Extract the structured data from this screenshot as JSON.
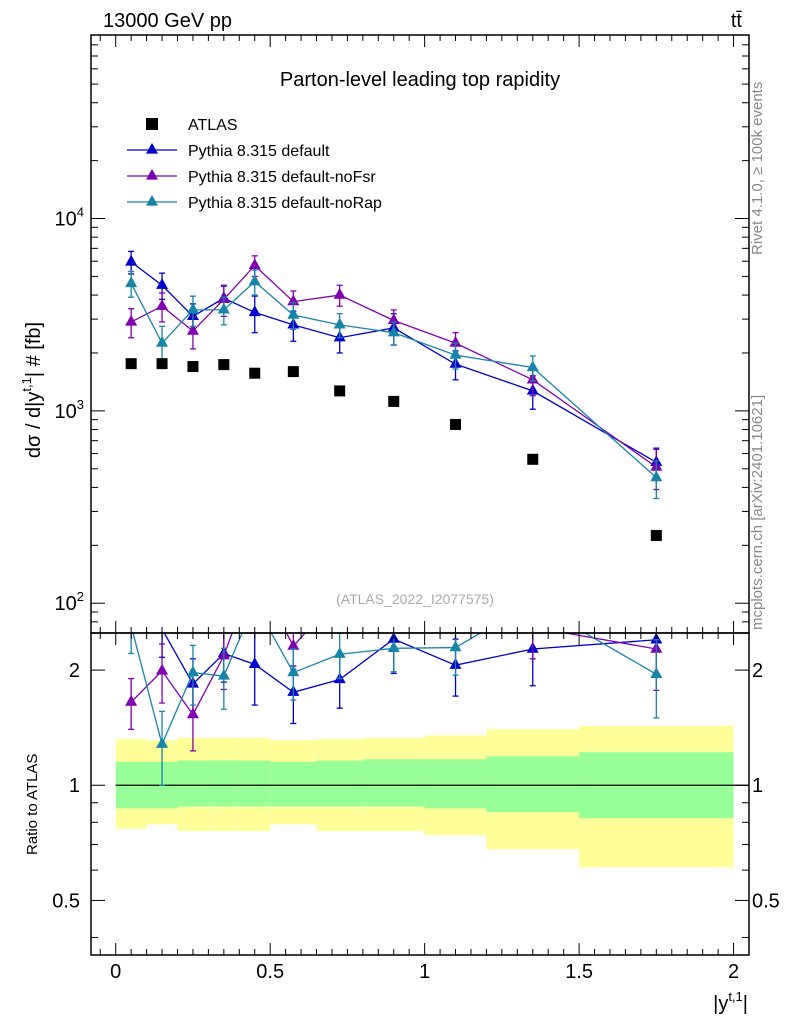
{
  "header": {
    "left": "13000 GeV pp",
    "right": "tt̄"
  },
  "side": {
    "rivet": "Rivet 4.1.0, ≥ 100k events",
    "mcplots": "mcplots.cern.ch [arXiv:2401.10621]"
  },
  "chart_data": {
    "type": "scatter",
    "title": "Parton-level leading top rapidity",
    "analysis_tag": "(ATLAS_2022_I2077575)",
    "xlabel": "|y",
    "xlabel_sup": "t,1",
    "xlabel_close": "|",
    "ylabel": "dσ / d|y",
    "ylabel_sup": "t,1",
    "ylabel_rest": "| # [fb]",
    "ratio_ylabel": "Ratio to ATLAS",
    "yscale": "log",
    "xlim": [
      -0.08,
      2.05
    ],
    "ylim": [
      70,
      90000
    ],
    "ratio_ylim": [
      0.36,
      2.5
    ],
    "x_ticks": [
      {
        "v": 0,
        "label": "0"
      },
      {
        "v": 0.5,
        "label": "0.5"
      },
      {
        "v": 1,
        "label": "1"
      },
      {
        "v": 1.5,
        "label": "1.5"
      },
      {
        "v": 2,
        "label": "2"
      }
    ],
    "y_ticks": [
      {
        "v": 100,
        "base": "10",
        "exp": "2"
      },
      {
        "v": 1000,
        "base": "10",
        "exp": "3"
      },
      {
        "v": 10000,
        "base": "10",
        "exp": "4"
      }
    ],
    "ratio_ticks": [
      {
        "v": 0.5,
        "label": "0.5"
      },
      {
        "v": 1,
        "label": "1"
      },
      {
        "v": 2,
        "label": "2"
      }
    ],
    "bin_edges": [
      0,
      0.1,
      0.2,
      0.3,
      0.4,
      0.5,
      0.65,
      0.8,
      1.0,
      1.2,
      1.5,
      2.0
    ],
    "bin_centers": [
      0.05,
      0.15,
      0.25,
      0.35,
      0.45,
      0.575,
      0.725,
      0.9,
      1.1,
      1.35,
      1.75
    ],
    "data": {
      "name": "ATLAS",
      "values": [
        1760,
        1760,
        1700,
        1740,
        1570,
        1600,
        1270,
        1120,
        850,
        560,
        225
      ],
      "band_inner": [
        [
          0.87,
          1.15
        ],
        [
          0.87,
          1.15
        ],
        [
          0.88,
          1.16
        ],
        [
          0.88,
          1.16
        ],
        [
          0.88,
          1.16
        ],
        [
          0.88,
          1.15
        ],
        [
          0.88,
          1.16
        ],
        [
          0.88,
          1.17
        ],
        [
          0.87,
          1.17
        ],
        [
          0.85,
          1.19
        ],
        [
          0.82,
          1.22
        ]
      ],
      "band_outer": [
        [
          0.77,
          1.32
        ],
        [
          0.79,
          1.31
        ],
        [
          0.76,
          1.33
        ],
        [
          0.76,
          1.33
        ],
        [
          0.76,
          1.33
        ],
        [
          0.79,
          1.31
        ],
        [
          0.76,
          1.32
        ],
        [
          0.76,
          1.33
        ],
        [
          0.74,
          1.35
        ],
        [
          0.68,
          1.4
        ],
        [
          0.61,
          1.43
        ]
      ]
    },
    "series": [
      {
        "name": "Pythia 8.315 default",
        "color": "#0000cc",
        "values": [
          5950,
          4500,
          3100,
          3850,
          3250,
          2800,
          2400,
          2700,
          1750,
          1270,
          540
        ],
        "errors": [
          800,
          700,
          500,
          600,
          700,
          500,
          400,
          500,
          300,
          250,
          100
        ],
        "ratio": [
          3.38,
          2.56,
          1.84,
          2.21,
          2.07,
          1.75,
          1.89,
          2.41,
          2.06,
          2.27,
          2.4
        ],
        "ratio_errors": [
          0.45,
          0.4,
          0.3,
          0.35,
          0.45,
          0.3,
          0.3,
          0.45,
          0.35,
          0.45,
          0.45
        ]
      },
      {
        "name": "Pythia 8.315 default-noFsr",
        "color": "#8000b0",
        "values": [
          2900,
          3500,
          2600,
          3800,
          5700,
          3700,
          4000,
          2950,
          2250,
          1450,
          510
        ],
        "errors": [
          500,
          600,
          500,
          700,
          700,
          500,
          500,
          400,
          300,
          250,
          120
        ],
        "ratio": [
          1.65,
          1.99,
          1.53,
          2.18,
          3.63,
          2.31,
          3.15,
          2.63,
          2.65,
          2.59,
          2.27
        ],
        "ratio_errors": [
          0.25,
          0.35,
          0.3,
          0.4,
          0.45,
          0.3,
          0.4,
          0.35,
          0.35,
          0.45,
          0.5
        ]
      },
      {
        "name": "Pythia 8.315 default-noRap",
        "color": "#1785a8",
        "values": [
          4600,
          2250,
          3350,
          3350,
          4700,
          3150,
          2800,
          2550,
          1950,
          1680,
          450
        ],
        "errors": [
          700,
          500,
          600,
          550,
          700,
          500,
          400,
          350,
          300,
          250,
          100
        ],
        "ratio": [
          2.61,
          1.28,
          1.97,
          1.93,
          2.99,
          1.97,
          2.2,
          2.28,
          2.29,
          3.0,
          1.95
        ],
        "ratio_errors": [
          0.4,
          0.28,
          0.35,
          0.35,
          0.45,
          0.3,
          0.3,
          0.3,
          0.35,
          0.45,
          0.45
        ]
      }
    ]
  }
}
